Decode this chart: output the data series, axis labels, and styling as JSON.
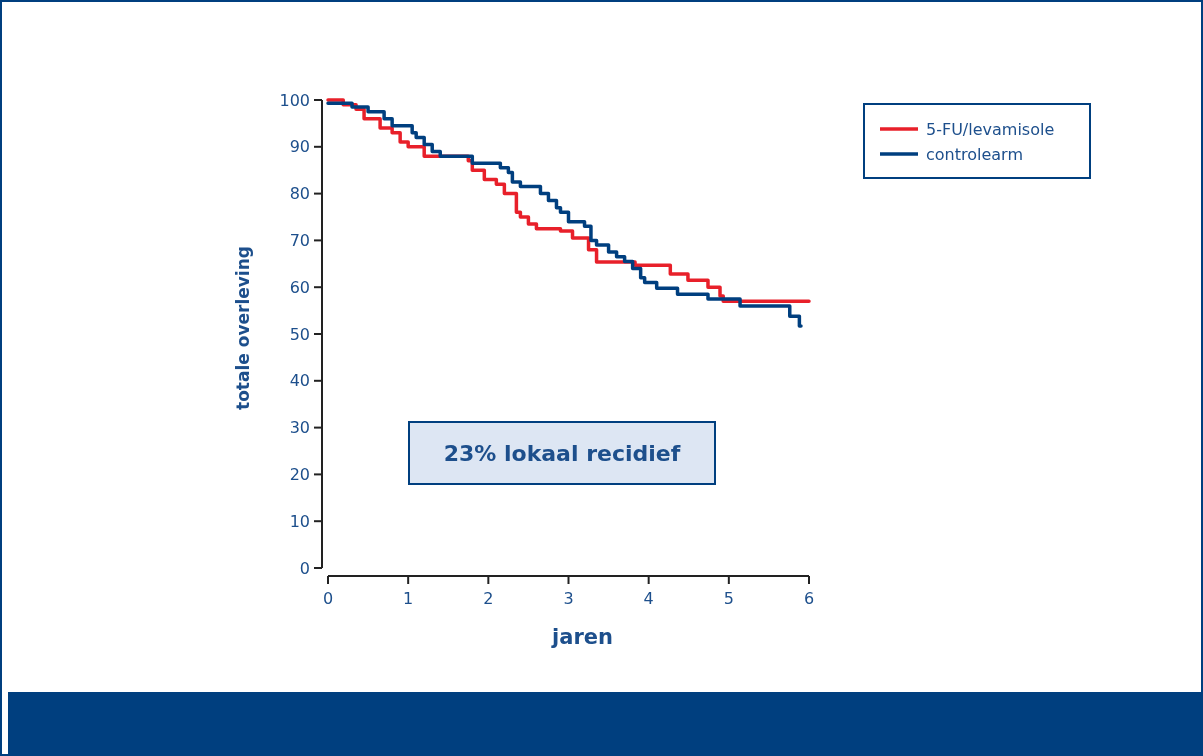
{
  "chart_data": {
    "type": "step",
    "xlabel": "jaren",
    "ylabel": "totale overleving",
    "xlim": [
      0,
      6
    ],
    "ylim": [
      0,
      100
    ],
    "xticks": [
      0,
      1,
      2,
      3,
      4,
      5,
      6
    ],
    "yticks": [
      0,
      10,
      20,
      30,
      40,
      50,
      60,
      70,
      80,
      90,
      100
    ],
    "grid": false,
    "legend": "top right",
    "line_style": "solid",
    "marker": "none",
    "annotations": [
      "23% lokaal recidief"
    ],
    "series": [
      {
        "name": "5-FU/levamisole",
        "color": "#e8202a",
        "x": [
          0,
          0.19,
          0.35,
          0.45,
          0.65,
          0.8,
          0.9,
          1.0,
          1.2,
          1.75,
          1.8,
          1.95,
          2.1,
          2.2,
          2.35,
          2.4,
          2.5,
          2.6,
          2.9,
          3.05,
          3.25,
          3.35,
          3.83,
          4.27,
          4.49,
          4.74,
          4.89,
          4.93,
          6.0
        ],
        "values": [
          100,
          99,
          98,
          96,
          94,
          93,
          91,
          90,
          88,
          87,
          85,
          83,
          82,
          80,
          76,
          75,
          73.5,
          72.5,
          72,
          70.5,
          68,
          65.4,
          64.7,
          62.8,
          61.5,
          60,
          58.1,
          57,
          57
        ]
      },
      {
        "name": "controlearm",
        "color": "#003f7f",
        "x": [
          0,
          0.3,
          0.5,
          0.7,
          0.8,
          1.05,
          1.1,
          1.2,
          1.3,
          1.4,
          1.45,
          1.8,
          2.15,
          2.25,
          2.3,
          2.4,
          2.65,
          2.75,
          2.85,
          2.9,
          3.0,
          3.2,
          3.28,
          3.35,
          3.5,
          3.6,
          3.7,
          3.8,
          3.9,
          3.95,
          4.1,
          4.36,
          4.74,
          5.14,
          5.76,
          5.88,
          5.9
        ],
        "values": [
          99.3,
          98.5,
          97.5,
          96,
          94.5,
          93,
          92,
          90.5,
          89,
          88,
          88,
          86.5,
          85.5,
          84.5,
          82.5,
          81.5,
          80,
          78.5,
          77,
          76,
          74,
          73,
          70,
          69,
          67.5,
          66.5,
          65.5,
          64,
          62,
          61,
          59.8,
          58.5,
          57.5,
          56,
          53.8,
          51.7,
          51.7
        ]
      }
    ]
  }
}
